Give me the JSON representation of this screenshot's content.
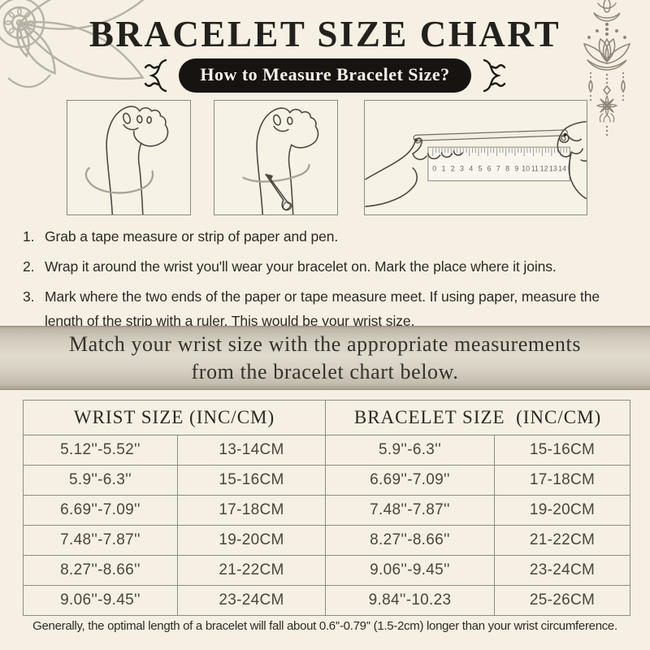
{
  "page": {
    "title": "BRACELET SIZE CHART",
    "badge": "How to Measure Bracelet Size?"
  },
  "steps": [
    {
      "num": "1.",
      "text": "Grab a tape measure or strip of paper and pen."
    },
    {
      "num": "2.",
      "text": "Wrap it around the wrist you'll wear your bracelet on. Mark the place where it joins."
    },
    {
      "num": "3.",
      "text": "Mark where the two ends of the paper or tape measure meet. If using paper, measure the length of the strip with a ruler. This would be your wrist size."
    }
  ],
  "banner": {
    "line1": "Match your wrist size with the appropriate measurements",
    "line2": "from the bracelet chart below."
  },
  "size_table": {
    "headers": [
      "WRIST SIZE (INC/CM)",
      "BRACELET SIZE  (INC/CM)"
    ],
    "rows": [
      [
        "5.12''-5.52''",
        "13-14CM",
        "5.9''-6.3''",
        "15-16CM"
      ],
      [
        "5.9''-6.3''",
        "15-16CM",
        "6.69''-7.09''",
        "17-18CM"
      ],
      [
        "6.69''-7.09''",
        "17-18CM",
        "7.48''-7.87''",
        "19-20CM"
      ],
      [
        "7.48''-7.87''",
        "19-20CM",
        "8.27''-8.66''",
        "21-22CM"
      ],
      [
        "8.27''-8.66''",
        "21-22CM",
        "9.06''-9.45''",
        "23-24CM"
      ],
      [
        "9.06''-9.45''",
        "23-24CM",
        "9.84''-10.23",
        "25-26CM"
      ]
    ]
  },
  "footer": "Generally, the optimal length of a bracelet will fall about 0.6''-0.79'' (1.5-2cm) longer than your wrist circumference.",
  "illustrations": {
    "ruler_numbers": "0 1 2 3 4 5 6 7 8 9 10 11 12 13 14",
    "step1": "hand with tape measure wrapped around wrist",
    "step2": "hand with pen marking measuring strip on wrist",
    "step3": "hands measuring paper strip against ruler"
  },
  "icons": [
    "mandala-icon",
    "lotus-hanging-ornament-icon",
    "flourish-left-icon",
    "flourish-right-icon"
  ],
  "colors": {
    "background": "#f5f0e3",
    "badge_bg": "#161310",
    "badge_text": "#f6f2e8",
    "banner_bg": "#d3cdbf",
    "table_border": "#8f8b80",
    "text_dark": "#23211d",
    "decoration_gray": "#b6b2a8",
    "decoration_taupe": "#8d8578"
  }
}
